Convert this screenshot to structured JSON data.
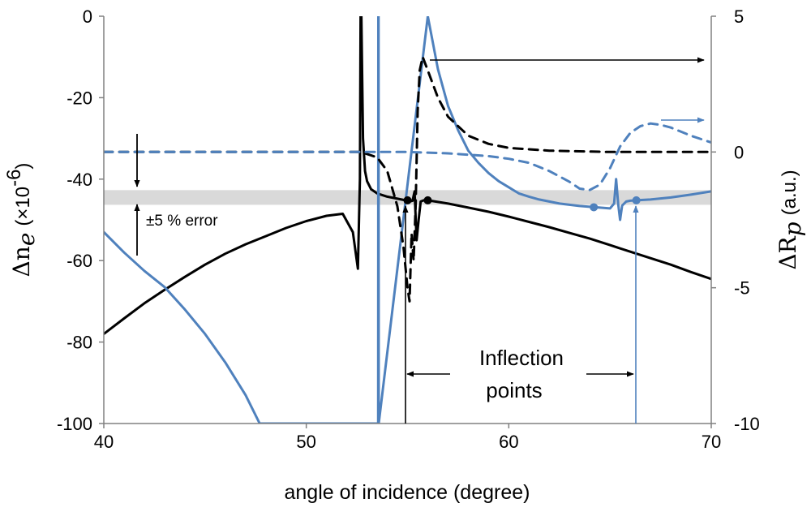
{
  "chart_data": {
    "type": "line",
    "xlabel": "angle of incidence (degree)",
    "xlim": [
      40,
      70
    ],
    "x_ticks": [
      "40",
      "50",
      "60",
      "70"
    ],
    "ylabel_left": {
      "symbol": "Δn",
      "subscript": "e",
      "units": "(×10",
      "exponent": "-6",
      "close": ")"
    },
    "ylim_left": [
      -100,
      0
    ],
    "y_ticks_left": [
      "0",
      "-20",
      "-40",
      "-60",
      "-80",
      "-100"
    ],
    "ylabel_right": {
      "symbol": "ΔR",
      "subscript": "p",
      "units": "(a.u.)"
    },
    "ylim_right": [
      -10,
      5
    ],
    "y_ticks_right": [
      "5",
      "0",
      "-5",
      "-10"
    ],
    "error_band": {
      "label": "±5 % error",
      "range_left": [
        -46.3,
        -42.7
      ],
      "color": "#d9d9d9"
    },
    "annotation": {
      "line1": "Inflection",
      "line2": "points"
    },
    "colors": {
      "black": "#000000",
      "blue": "#4f81bd",
      "band": "#d9d9d9",
      "frame": "#808080"
    },
    "series": [
      {
        "name": "Δn_e black (left axis)",
        "axis": "left",
        "color": "#000000",
        "dash": false,
        "x": [
          40,
          41,
          42,
          43,
          44,
          45,
          46,
          47,
          48,
          49,
          50,
          51,
          51.8,
          52.3,
          52.55,
          52.65,
          52.68,
          52.7,
          52.72,
          52.8,
          52.9,
          53,
          53.2,
          53.5,
          54,
          54.5,
          54.9,
          55.1,
          55.25,
          55.35,
          55.45,
          55.55,
          55.65,
          55.8,
          56,
          57,
          58,
          59,
          60,
          61,
          62,
          63,
          64,
          65,
          66,
          67,
          68,
          69,
          70
        ],
        "y": [
          -78,
          -74.2,
          -70.5,
          -67.2,
          -64,
          -61,
          -58.3,
          -56,
          -54,
          -52,
          -50.3,
          -49,
          -48.5,
          -53,
          -62,
          -40,
          0,
          0,
          0,
          -30,
          -38,
          -40.5,
          -42.5,
          -43.5,
          -44.3,
          -44.8,
          -45.2,
          -45.5,
          -45.3,
          -43,
          -55,
          -50,
          -45.5,
          -45.2,
          -45.2,
          -46,
          -47,
          -48,
          -49.2,
          -50.5,
          -51.8,
          -53.2,
          -54.6,
          -56.2,
          -57.8,
          -59.4,
          -61,
          -62.8,
          -64.5
        ]
      },
      {
        "name": "Δn_e blue (left axis)",
        "axis": "left",
        "color": "#4f81bd",
        "dash": false,
        "x": [
          40,
          41,
          42,
          43,
          44,
          45,
          46,
          47,
          47.7,
          53.55,
          53.56,
          53.57,
          53.58,
          56,
          56.5,
          57,
          57.5,
          58,
          58.5,
          59,
          59.5,
          60,
          60.5,
          61,
          61.5,
          62,
          62.5,
          63,
          63.5,
          64,
          64.5,
          65,
          65.2,
          65.3,
          65.4,
          65.5,
          65.6,
          65.8,
          66,
          66.3,
          67,
          68,
          69,
          70
        ],
        "y": [
          -53,
          -58,
          -62.5,
          -66.5,
          -72,
          -78,
          -85,
          -93,
          -100,
          -100,
          0,
          0,
          -100,
          0,
          -13,
          -22,
          -28,
          -33,
          -36,
          -38.5,
          -40.5,
          -42,
          -43.5,
          -44.3,
          -45,
          -45.5,
          -46,
          -46.3,
          -46.6,
          -46.8,
          -47,
          -47.2,
          -46,
          -40,
          -46,
          -50,
          -46.5,
          -45.5,
          -45.3,
          -45.2,
          -45,
          -44.5,
          -43.8,
          -43
        ]
      },
      {
        "name": "ΔR_p black dashed (right axis)",
        "axis": "right",
        "color": "#000000",
        "dash": true,
        "x": [
          40,
          50,
          52,
          52.7,
          53.5,
          54,
          54.5,
          54.8,
          55,
          55.1,
          55.2,
          55.3,
          55.4,
          55.5,
          55.6,
          55.75,
          56,
          56.5,
          57,
          58,
          59,
          60,
          62,
          65,
          70
        ],
        "y": [
          0,
          0,
          0,
          0,
          -0.2,
          -0.7,
          -2,
          -3.5,
          -5,
          -5.5,
          -3,
          -4,
          -2,
          1.5,
          3,
          3.5,
          3,
          2,
          1.3,
          0.6,
          0.3,
          0.15,
          0.05,
          0,
          0
        ]
      },
      {
        "name": "ΔR_p blue dashed (right axis)",
        "axis": "right",
        "color": "#4f81bd",
        "dash": true,
        "x": [
          40,
          45,
          50,
          55,
          57,
          59,
          60,
          61,
          62,
          63,
          63.5,
          64,
          64.5,
          65,
          65.5,
          66,
          66.5,
          67,
          67.5,
          68,
          69,
          70
        ],
        "y": [
          0,
          0,
          0,
          0,
          -0.05,
          -0.15,
          -0.25,
          -0.4,
          -0.7,
          -1.1,
          -1.35,
          -1.4,
          -1.2,
          -0.6,
          0.2,
          0.7,
          0.95,
          1.05,
          1.0,
          0.9,
          0.6,
          0.35
        ]
      }
    ],
    "markers": [
      {
        "axis": "left",
        "x": 55.0,
        "y": -45.2,
        "color": "#000000"
      },
      {
        "axis": "left",
        "x": 56.0,
        "y": -45.2,
        "color": "#000000"
      },
      {
        "axis": "left",
        "x": 64.2,
        "y": -46.9,
        "color": "#4f81bd"
      },
      {
        "axis": "left",
        "x": 66.3,
        "y": -45.2,
        "color": "#4f81bd"
      }
    ]
  }
}
